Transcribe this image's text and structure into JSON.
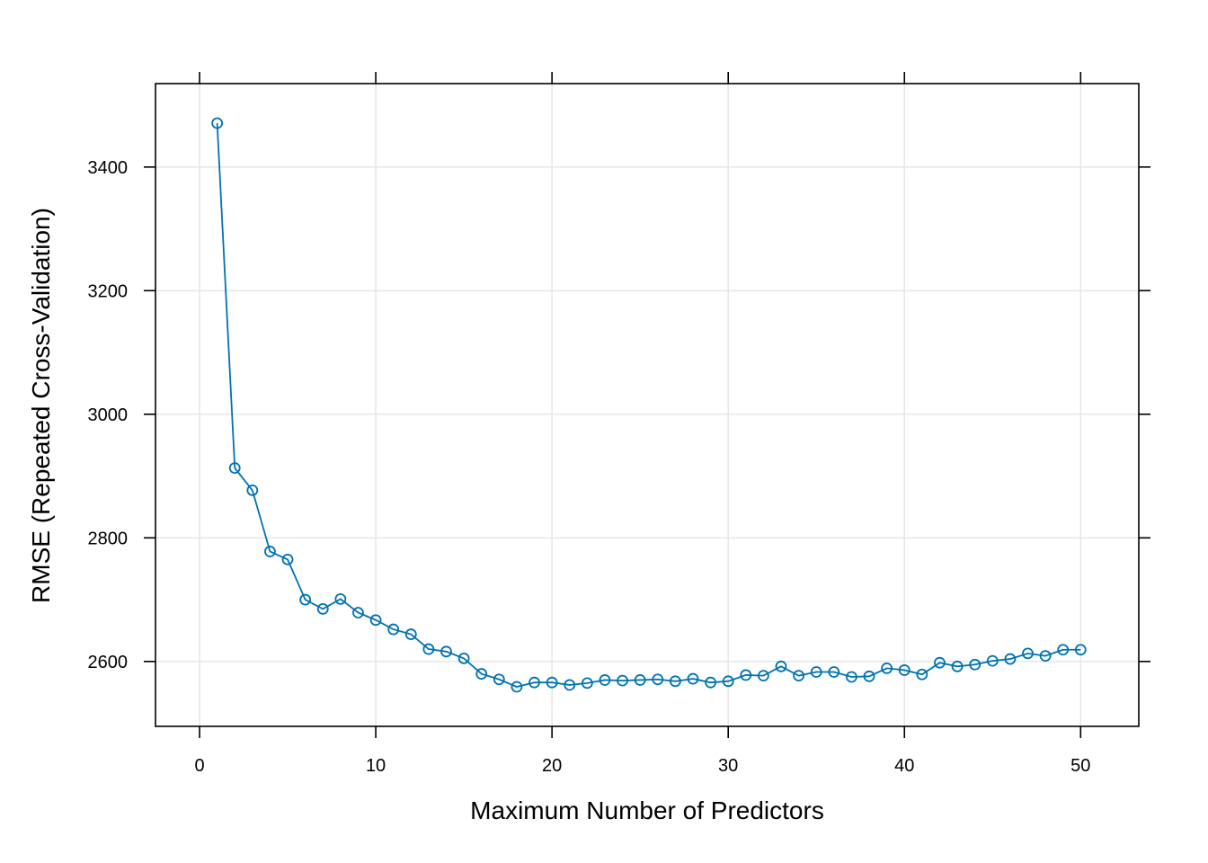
{
  "chart_data": {
    "type": "line",
    "title": "",
    "xlabel": "Maximum Number of Predictors",
    "ylabel": "RMSE (Repeated Cross-Validation)",
    "xlim": [
      -2.5,
      53.3
    ],
    "ylim": [
      2495,
      3535
    ],
    "x_ticks": [
      0,
      10,
      20,
      30,
      40,
      50
    ],
    "y_ticks": [
      2600,
      2800,
      3000,
      3200,
      3400
    ],
    "grid": true,
    "legend": "none",
    "line_color": "#0072B2",
    "marker": "open-circle",
    "series": [
      {
        "x": [
          1,
          2,
          3,
          4,
          5,
          6,
          7,
          8,
          9,
          10,
          11,
          12,
          13,
          14,
          15,
          16,
          17,
          18,
          19,
          20,
          21,
          22,
          23,
          24,
          25,
          26,
          27,
          28,
          29,
          30,
          31,
          32,
          33,
          34,
          35,
          36,
          37,
          38,
          39,
          40,
          41,
          42,
          43,
          44,
          45,
          46,
          47,
          48,
          49,
          50
        ],
        "y": [
          3471,
          2913,
          2877,
          2778,
          2765,
          2700,
          2685,
          2701,
          2679,
          2667,
          2652,
          2644,
          2620,
          2616,
          2605,
          2580,
          2571,
          2559,
          2566,
          2566,
          2562,
          2565,
          2570,
          2569,
          2570,
          2571,
          2568,
          2572,
          2566,
          2568,
          2578,
          2577,
          2592,
          2577,
          2583,
          2583,
          2575,
          2576,
          2589,
          2586,
          2579,
          2598,
          2592,
          2595,
          2601,
          2604,
          2613,
          2609,
          2619,
          2619
        ]
      }
    ]
  }
}
